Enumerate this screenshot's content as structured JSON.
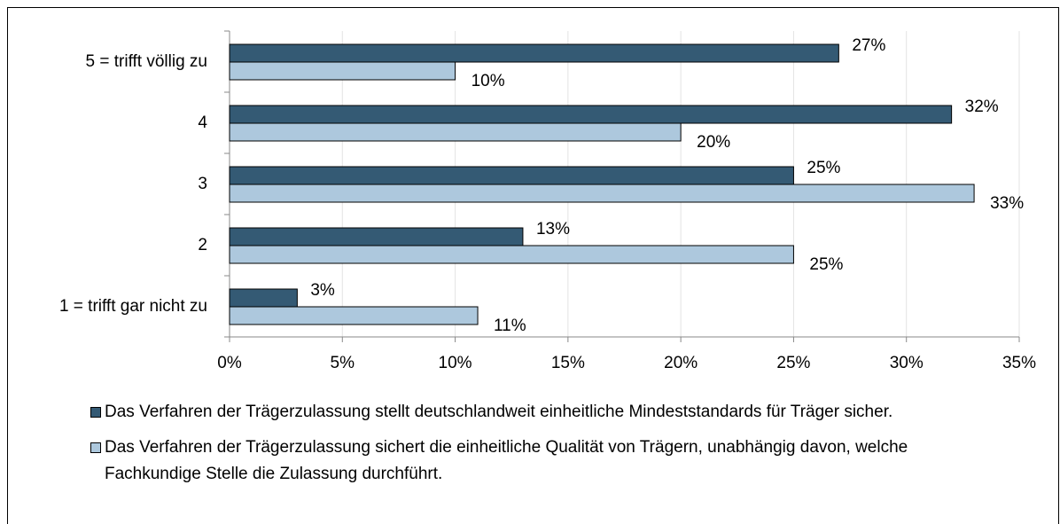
{
  "chart_data": {
    "type": "hbar",
    "categories": [
      "5 = trifft völlig zu",
      "4",
      "3",
      "2",
      "1 = trifft gar nicht zu"
    ],
    "series": [
      {
        "name": "Das Verfahren der Trägerzulassung stellt deutschlandweit einheitliche Mindeststandards für Träger sicher.",
        "color": "#345a74",
        "values": [
          27,
          32,
          25,
          13,
          3
        ],
        "value_labels": [
          "27%",
          "32%",
          "25%",
          "13%",
          "3%"
        ]
      },
      {
        "name": "Das Verfahren der Trägerzulassung sichert die einheitliche Qualität von Trägern, unabhängig davon, welche Fachkundige Stelle die Zulassung durchführt.",
        "color": "#adc8dd",
        "values": [
          10,
          20,
          33,
          25,
          11
        ],
        "value_labels": [
          "10%",
          "20%",
          "33%",
          "25%",
          "11%"
        ]
      }
    ],
    "xlim": [
      0,
      35
    ],
    "xticks": [
      {
        "value": 0,
        "label": "0%"
      },
      {
        "value": 5,
        "label": "5%"
      },
      {
        "value": 10,
        "label": "10%"
      },
      {
        "value": 15,
        "label": "15%"
      },
      {
        "value": 20,
        "label": "20%"
      },
      {
        "value": 25,
        "label": "25%"
      },
      {
        "value": 30,
        "label": "30%"
      },
      {
        "value": 35,
        "label": "35%"
      }
    ],
    "grid": true,
    "legend": "bottom"
  }
}
